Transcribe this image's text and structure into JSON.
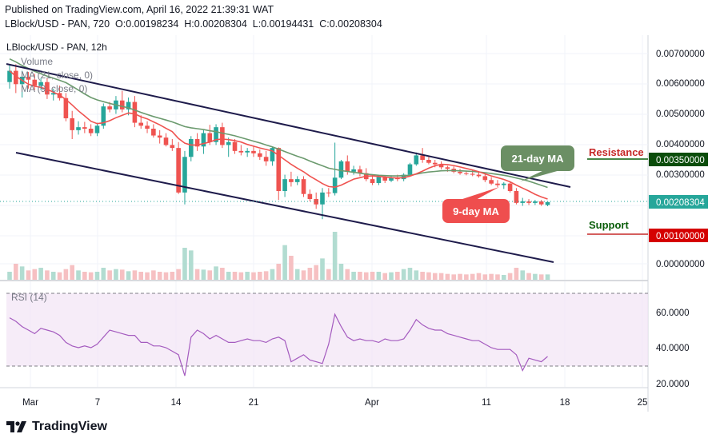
{
  "header": {
    "published": "Published on TradingView.com, April 16, 2022 21:39:31 WAT",
    "symbol": "LBlock/USD - PAN, 720",
    "o_label": "O:",
    "o": "0.00198234",
    "h_label": "H:",
    "h": "0.00208304",
    "l_label": "L:",
    "l": "0.00194431",
    "c_label": "C:",
    "c": "0.00208304"
  },
  "legend": {
    "title": "LBlock/USD - PAN, 12h",
    "volume": "Volume",
    "ma21": "MA (21, close, 0)",
    "ma9": "MA (9, close, 0)",
    "rsi": "RSI (14)"
  },
  "annotations": {
    "ma21_label": "21-day MA",
    "ma9_label": "9-day MA",
    "resistance": "Resistance",
    "support": "Support"
  },
  "price_axis": {
    "ticks": [
      "0.00700000",
      "0.00600000",
      "0.00500000",
      "0.00400000",
      "0.00300000",
      "0.00000000"
    ],
    "resistance_tag": "0.00350000",
    "current_tag": "0.00208304",
    "support_tag": "0.00100000"
  },
  "rsi_axis": {
    "ticks": [
      "60.0000",
      "40.0000",
      "20.0000"
    ]
  },
  "time_axis": {
    "ticks": [
      "Mar",
      "7",
      "14",
      "21",
      "Apr",
      "11",
      "18",
      "25"
    ]
  },
  "branding": {
    "logo_text": "TradingView"
  },
  "colors": {
    "up": "#26a69a",
    "down": "#ef5350",
    "ma9": "#ef5350",
    "ma21": "#6b9a6e",
    "channel": "#1e1b4b",
    "rsi": "#a45bbf",
    "resistance": "#c62828",
    "support": "#0b5e0b",
    "bubble21": "#6b8f64",
    "bubble9": "#ef4e4e"
  },
  "chart_data": {
    "type": "candlestick",
    "interval": "12h",
    "ylim": [
      0.0,
      0.0074
    ],
    "candles": [
      {
        "o": 0.00612,
        "h": 0.00668,
        "l": 0.0059,
        "c": 0.0065
      },
      {
        "o": 0.0065,
        "h": 0.00672,
        "l": 0.00575,
        "c": 0.00605
      },
      {
        "o": 0.00605,
        "h": 0.0065,
        "l": 0.0056,
        "c": 0.0063
      },
      {
        "o": 0.0063,
        "h": 0.00646,
        "l": 0.0059,
        "c": 0.0062
      },
      {
        "o": 0.0062,
        "h": 0.0064,
        "l": 0.00585,
        "c": 0.006
      },
      {
        "o": 0.006,
        "h": 0.00625,
        "l": 0.00585,
        "c": 0.00612
      },
      {
        "o": 0.00612,
        "h": 0.00625,
        "l": 0.00555,
        "c": 0.0057
      },
      {
        "o": 0.0057,
        "h": 0.0059,
        "l": 0.0055,
        "c": 0.00575
      },
      {
        "o": 0.00575,
        "h": 0.006,
        "l": 0.0055,
        "c": 0.00558
      },
      {
        "o": 0.00558,
        "h": 0.00575,
        "l": 0.0048,
        "c": 0.0049
      },
      {
        "o": 0.0049,
        "h": 0.00515,
        "l": 0.0042,
        "c": 0.0045
      },
      {
        "o": 0.0045,
        "h": 0.0048,
        "l": 0.00435,
        "c": 0.0046
      },
      {
        "o": 0.0046,
        "h": 0.00478,
        "l": 0.0044,
        "c": 0.00455
      },
      {
        "o": 0.00455,
        "h": 0.0047,
        "l": 0.0043,
        "c": 0.0044
      },
      {
        "o": 0.0044,
        "h": 0.00475,
        "l": 0.0043,
        "c": 0.00465
      },
      {
        "o": 0.00465,
        "h": 0.0054,
        "l": 0.00455,
        "c": 0.0053
      },
      {
        "o": 0.0053,
        "h": 0.00545,
        "l": 0.0051,
        "c": 0.0052
      },
      {
        "o": 0.0052,
        "h": 0.00565,
        "l": 0.00505,
        "c": 0.0055
      },
      {
        "o": 0.0055,
        "h": 0.00582,
        "l": 0.0051,
        "c": 0.0052
      },
      {
        "o": 0.0052,
        "h": 0.0056,
        "l": 0.005,
        "c": 0.00545
      },
      {
        "o": 0.00545,
        "h": 0.00565,
        "l": 0.0046,
        "c": 0.00475
      },
      {
        "o": 0.00475,
        "h": 0.005,
        "l": 0.00455,
        "c": 0.00465
      },
      {
        "o": 0.00465,
        "h": 0.0048,
        "l": 0.0044,
        "c": 0.00455
      },
      {
        "o": 0.00455,
        "h": 0.0047,
        "l": 0.00425,
        "c": 0.00432
      },
      {
        "o": 0.00432,
        "h": 0.0045,
        "l": 0.00405,
        "c": 0.00425
      },
      {
        "o": 0.00425,
        "h": 0.0044,
        "l": 0.00395,
        "c": 0.004
      },
      {
        "o": 0.004,
        "h": 0.0042,
        "l": 0.0038,
        "c": 0.0039
      },
      {
        "o": 0.0039,
        "h": 0.0041,
        "l": 0.00235,
        "c": 0.0024
      },
      {
        "o": 0.0024,
        "h": 0.0038,
        "l": 0.002,
        "c": 0.0036
      },
      {
        "o": 0.0036,
        "h": 0.0043,
        "l": 0.00345,
        "c": 0.0042
      },
      {
        "o": 0.0042,
        "h": 0.0044,
        "l": 0.0038,
        "c": 0.00395
      },
      {
        "o": 0.00395,
        "h": 0.0045,
        "l": 0.0037,
        "c": 0.0044
      },
      {
        "o": 0.0044,
        "h": 0.00468,
        "l": 0.004,
        "c": 0.0041
      },
      {
        "o": 0.0041,
        "h": 0.0047,
        "l": 0.004,
        "c": 0.0046
      },
      {
        "o": 0.0046,
        "h": 0.00475,
        "l": 0.0039,
        "c": 0.004
      },
      {
        "o": 0.004,
        "h": 0.00425,
        "l": 0.0036,
        "c": 0.0041
      },
      {
        "o": 0.0041,
        "h": 0.0042,
        "l": 0.0037,
        "c": 0.0038
      },
      {
        "o": 0.0038,
        "h": 0.004,
        "l": 0.00365,
        "c": 0.00375
      },
      {
        "o": 0.00375,
        "h": 0.0039,
        "l": 0.0036,
        "c": 0.0038
      },
      {
        "o": 0.0038,
        "h": 0.00395,
        "l": 0.0036,
        "c": 0.00372
      },
      {
        "o": 0.00372,
        "h": 0.00385,
        "l": 0.0035,
        "c": 0.0036
      },
      {
        "o": 0.0036,
        "h": 0.0038,
        "l": 0.0033,
        "c": 0.00345
      },
      {
        "o": 0.00345,
        "h": 0.00395,
        "l": 0.0033,
        "c": 0.0039
      },
      {
        "o": 0.0039,
        "h": 0.00392,
        "l": 0.00215,
        "c": 0.00245
      },
      {
        "o": 0.00245,
        "h": 0.003,
        "l": 0.00225,
        "c": 0.00285
      },
      {
        "o": 0.00285,
        "h": 0.0031,
        "l": 0.0026,
        "c": 0.00275
      },
      {
        "o": 0.00275,
        "h": 0.00295,
        "l": 0.00265,
        "c": 0.00285
      },
      {
        "o": 0.00285,
        "h": 0.00295,
        "l": 0.00225,
        "c": 0.00235
      },
      {
        "o": 0.00235,
        "h": 0.0025,
        "l": 0.0021,
        "c": 0.00218
      },
      {
        "o": 0.00218,
        "h": 0.0024,
        "l": 0.00185,
        "c": 0.002
      },
      {
        "o": 0.002,
        "h": 0.00255,
        "l": 0.0015,
        "c": 0.0024
      },
      {
        "o": 0.0024,
        "h": 0.00255,
        "l": 0.00225,
        "c": 0.00238
      },
      {
        "o": 0.00238,
        "h": 0.00408,
        "l": 0.0023,
        "c": 0.0029
      },
      {
        "o": 0.0029,
        "h": 0.0035,
        "l": 0.00285,
        "c": 0.00345
      },
      {
        "o": 0.00345,
        "h": 0.00365,
        "l": 0.003,
        "c": 0.0031
      },
      {
        "o": 0.0031,
        "h": 0.0033,
        "l": 0.003,
        "c": 0.00318
      },
      {
        "o": 0.00318,
        "h": 0.0033,
        "l": 0.00295,
        "c": 0.00305
      },
      {
        "o": 0.00305,
        "h": 0.00322,
        "l": 0.00278,
        "c": 0.00285
      },
      {
        "o": 0.00285,
        "h": 0.003,
        "l": 0.00265,
        "c": 0.00272
      },
      {
        "o": 0.00272,
        "h": 0.003,
        "l": 0.00265,
        "c": 0.00292
      },
      {
        "o": 0.00292,
        "h": 0.00298,
        "l": 0.00272,
        "c": 0.0028
      },
      {
        "o": 0.0028,
        "h": 0.00298,
        "l": 0.00275,
        "c": 0.0029
      },
      {
        "o": 0.0029,
        "h": 0.003,
        "l": 0.00278,
        "c": 0.00285
      },
      {
        "o": 0.00285,
        "h": 0.00305,
        "l": 0.00278,
        "c": 0.003
      },
      {
        "o": 0.003,
        "h": 0.0034,
        "l": 0.00295,
        "c": 0.00335
      },
      {
        "o": 0.00335,
        "h": 0.00375,
        "l": 0.0033,
        "c": 0.00365
      },
      {
        "o": 0.00365,
        "h": 0.0039,
        "l": 0.0034,
        "c": 0.0035
      },
      {
        "o": 0.0035,
        "h": 0.0036,
        "l": 0.00335,
        "c": 0.0034
      },
      {
        "o": 0.0034,
        "h": 0.0035,
        "l": 0.00325,
        "c": 0.00335
      },
      {
        "o": 0.00335,
        "h": 0.00345,
        "l": 0.00318,
        "c": 0.00325
      },
      {
        "o": 0.00325,
        "h": 0.0033,
        "l": 0.0031,
        "c": 0.0032
      },
      {
        "o": 0.0032,
        "h": 0.00328,
        "l": 0.00305,
        "c": 0.0031
      },
      {
        "o": 0.0031,
        "h": 0.0032,
        "l": 0.003,
        "c": 0.00305
      },
      {
        "o": 0.00305,
        "h": 0.00312,
        "l": 0.00298,
        "c": 0.00303
      },
      {
        "o": 0.00303,
        "h": 0.00315,
        "l": 0.00295,
        "c": 0.003
      },
      {
        "o": 0.003,
        "h": 0.0031,
        "l": 0.0029,
        "c": 0.00295
      },
      {
        "o": 0.00295,
        "h": 0.00305,
        "l": 0.00275,
        "c": 0.00282
      },
      {
        "o": 0.00282,
        "h": 0.00292,
        "l": 0.00265,
        "c": 0.0027
      },
      {
        "o": 0.0027,
        "h": 0.00282,
        "l": 0.00258,
        "c": 0.00265
      },
      {
        "o": 0.00265,
        "h": 0.00275,
        "l": 0.00252,
        "c": 0.0027
      },
      {
        "o": 0.0027,
        "h": 0.00278,
        "l": 0.0024,
        "c": 0.00245
      },
      {
        "o": 0.00245,
        "h": 0.00255,
        "l": 0.002,
        "c": 0.00205
      },
      {
        "o": 0.00205,
        "h": 0.00222,
        "l": 0.00195,
        "c": 0.0021
      },
      {
        "o": 0.0021,
        "h": 0.00218,
        "l": 0.00198,
        "c": 0.00205
      },
      {
        "o": 0.00205,
        "h": 0.00215,
        "l": 0.00198,
        "c": 0.0021
      },
      {
        "o": 0.0021,
        "h": 0.00215,
        "l": 0.00195,
        "c": 0.002
      },
      {
        "o": 0.00198,
        "h": 0.00208,
        "l": 0.00194,
        "c": 0.00208
      }
    ],
    "volume": [
      30,
      60,
      50,
      35,
      40,
      45,
      35,
      30,
      28,
      40,
      55,
      35,
      30,
      28,
      30,
      45,
      35,
      40,
      38,
      32,
      35,
      30,
      28,
      35,
      30,
      28,
      30,
      40,
      120,
      110,
      40,
      38,
      35,
      50,
      45,
      30,
      30,
      28,
      30,
      28,
      30,
      32,
      40,
      60,
      130,
      90,
      40,
      35,
      45,
      55,
      80,
      40,
      180,
      60,
      40,
      30,
      30,
      28,
      30,
      30,
      25,
      28,
      30,
      40,
      45,
      35,
      30,
      28,
      25,
      25,
      22,
      20,
      22,
      20,
      22,
      25,
      20,
      22,
      20,
      18,
      25,
      45,
      35,
      25,
      22,
      20,
      20
    ],
    "rsi": [
      57,
      55,
      52,
      50,
      48,
      51,
      50,
      49,
      47,
      43,
      41,
      40,
      41,
      40,
      42,
      46,
      50,
      49,
      48,
      47,
      47,
      43,
      43,
      41,
      41,
      40,
      38,
      36,
      24,
      46,
      50,
      48,
      45,
      47,
      45,
      43,
      43,
      44,
      45,
      44,
      44,
      43,
      45,
      46,
      44,
      32,
      34,
      36,
      33,
      32,
      31,
      42,
      59,
      52,
      46,
      44,
      45,
      44,
      44,
      43,
      45,
      44,
      44,
      45,
      50,
      56,
      53,
      51,
      50,
      50,
      48,
      47,
      46,
      45,
      44,
      44,
      42,
      40,
      39,
      39,
      39,
      36,
      27,
      34,
      33,
      32,
      35
    ],
    "ma9": [
      0.0065,
      0.00632,
      0.00618,
      0.00605,
      0.00598,
      0.00594,
      0.00588,
      0.00578,
      0.00568,
      0.00553,
      0.00535,
      0.00515,
      0.00498,
      0.0048,
      0.00472,
      0.00475,
      0.00482,
      0.00492,
      0.005,
      0.00508,
      0.00505,
      0.00495,
      0.00488,
      0.00478,
      0.00468,
      0.00456,
      0.00445,
      0.00422,
      0.00406,
      0.004,
      0.004,
      0.00405,
      0.0041,
      0.00418,
      0.0042,
      0.00418,
      0.00415,
      0.0041,
      0.00402,
      0.00396,
      0.0039,
      0.00385,
      0.0038,
      0.00365,
      0.0035,
      0.00335,
      0.00322,
      0.0031,
      0.00295,
      0.00283,
      0.0027,
      0.0026,
      0.00258,
      0.00265,
      0.00275,
      0.00285,
      0.0029,
      0.00295,
      0.00296,
      0.00294,
      0.00292,
      0.0029,
      0.00289,
      0.0029,
      0.00295,
      0.00303,
      0.00312,
      0.00322,
      0.0033,
      0.00335,
      0.00334,
      0.00331,
      0.00326,
      0.00321,
      0.00316,
      0.0031,
      0.00303,
      0.00296,
      0.0029,
      0.00284,
      0.00276,
      0.00265,
      0.00255,
      0.00245,
      0.00234,
      0.00225,
      0.00218
    ],
    "ma21": [
      0.0069,
      0.0068,
      0.00668,
      0.00658,
      0.00648,
      0.0064,
      0.00632,
      0.00625,
      0.00618,
      0.0061,
      0.00598,
      0.00585,
      0.00572,
      0.0056,
      0.00552,
      0.00546,
      0.0054,
      0.00535,
      0.0053,
      0.00525,
      0.00518,
      0.0051,
      0.00503,
      0.00496,
      0.0049,
      0.00484,
      0.00478,
      0.0047,
      0.00462,
      0.00458,
      0.00455,
      0.00452,
      0.00448,
      0.00445,
      0.0044,
      0.00436,
      0.00431,
      0.00425,
      0.00419,
      0.00413,
      0.00407,
      0.004,
      0.00394,
      0.00386,
      0.00378,
      0.0037,
      0.00362,
      0.00355,
      0.00346,
      0.00338,
      0.0033,
      0.00322,
      0.00318,
      0.00314,
      0.00311,
      0.00308,
      0.00305,
      0.00302,
      0.003,
      0.00298,
      0.00297,
      0.00296,
      0.00296,
      0.00297,
      0.00298,
      0.00302,
      0.00306,
      0.00309,
      0.00311,
      0.00313,
      0.00314,
      0.00314,
      0.00313,
      0.00312,
      0.00311,
      0.00309,
      0.00307,
      0.00304,
      0.00301,
      0.00298,
      0.00294,
      0.00289,
      0.00284,
      0.00278,
      0.00271,
      0.00264,
      0.00257
    ]
  }
}
